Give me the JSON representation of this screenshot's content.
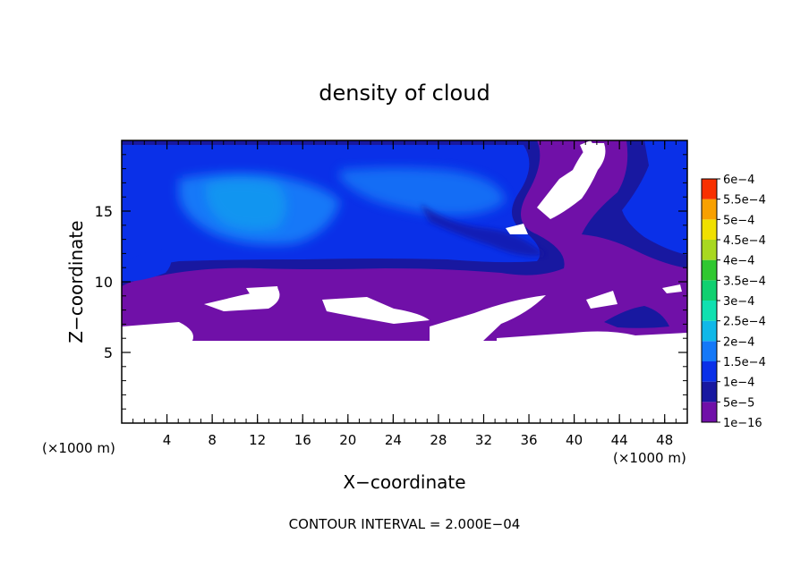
{
  "chart_data": {
    "type": "heatmap",
    "title": "density of cloud",
    "xlabel": "X−coordinate",
    "ylabel": "Z−coordinate",
    "x_unit_label_left": "(×1000 m)",
    "x_unit_label_right": "(×1000 m)",
    "xlim": [
      0,
      50
    ],
    "ylim": [
      0,
      20
    ],
    "x_ticks": [
      4,
      8,
      12,
      16,
      20,
      24,
      28,
      32,
      36,
      40,
      44,
      48
    ],
    "y_ticks": [
      5,
      10,
      15
    ],
    "x_minor_step": 1,
    "y_minor_step": 1,
    "grid": false,
    "legend_position": "right",
    "colorbar": {
      "labels": [
        "1e−16",
        "5e−5",
        "1e−4",
        "1.5e−4",
        "2e−4",
        "2.5e−4",
        "3e−4",
        "3.5e−4",
        "4e−4",
        "4.5e−4",
        "5e−4",
        "5.5e−4",
        "6e−4"
      ],
      "values": [
        1e-16,
        5e-05,
        0.0001,
        0.00015,
        0.0002,
        0.00025,
        0.0003,
        0.00035,
        0.0004,
        0.00045,
        0.0005,
        0.00055,
        0.0006
      ],
      "colors": [
        "#7010a8",
        "#1818a0",
        "#0a30e8",
        "#1478f8",
        "#10b8e8",
        "#10e0b0",
        "#10d070",
        "#30c830",
        "#a8d820",
        "#f0e000",
        "#f8a000",
        "#f83000",
        "#f87878"
      ]
    },
    "contour_interval_text": "CONTOUR INTERVAL = 2.000E−04",
    "regions": [
      {
        "desc": "no-cloud-below",
        "zmax": 6,
        "value": null
      },
      {
        "desc": "low-density-band",
        "x": [
          0,
          50
        ],
        "z": [
          6,
          10
        ],
        "value": 1e-16
      },
      {
        "desc": "main-cloud-layer",
        "x": [
          0,
          37
        ],
        "z": [
          10,
          19.5
        ],
        "value": 0.0001
      },
      {
        "desc": "dense-core",
        "x": [
          6,
          24
        ],
        "z": [
          13,
          17
        ],
        "value": 0.00015
      },
      {
        "desc": "right-upper-layer",
        "x": [
          40,
          50
        ],
        "z": [
          13,
          19.5
        ],
        "value": 0.0001
      },
      {
        "desc": "lower-right-patch",
        "x": [
          43,
          48
        ],
        "z": [
          6.5,
          8
        ],
        "value": 5e-05
      }
    ]
  }
}
